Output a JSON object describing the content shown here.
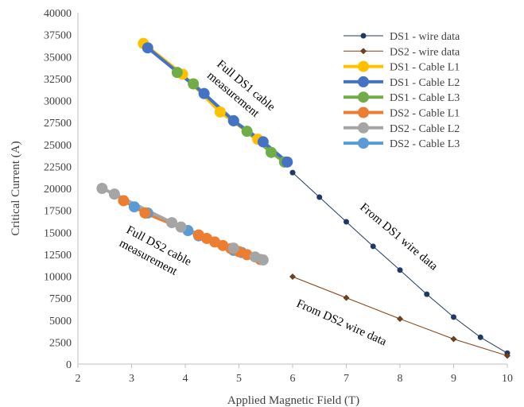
{
  "chart_data": {
    "type": "scatter",
    "title": "",
    "xlabel": "Applied Magnetic Field (T)",
    "ylabel": "Critical Current (A)",
    "xlim": [
      2,
      10
    ],
    "ylim": [
      0,
      40000
    ],
    "xticks": [
      2,
      3,
      4,
      5,
      6,
      7,
      8,
      9,
      10
    ],
    "yticks": [
      0,
      2500,
      5000,
      7500,
      10000,
      12500,
      15000,
      17500,
      20000,
      22500,
      25000,
      27500,
      30000,
      32500,
      35000,
      37500,
      40000
    ],
    "grid": false,
    "legend_position": "top-right",
    "series": [
      {
        "name": "DS1 - wire data",
        "color": "#1f3864",
        "marker": "circle",
        "line": "thin",
        "x": [
          6,
          6.5,
          7,
          7.5,
          8,
          8.5,
          9,
          9.5,
          10
        ],
        "y": [
          21800,
          19000,
          16200,
          13400,
          10700,
          7950,
          5350,
          3050,
          1250
        ]
      },
      {
        "name": "DS2 - wire data",
        "color": "#843c0c",
        "marker": "diamond",
        "line": "thin",
        "x": [
          6,
          7,
          8,
          9,
          10
        ],
        "y": [
          9950,
          7550,
          5150,
          2850,
          950
        ]
      },
      {
        "name": "DS1 - Cable L1",
        "color": "#ffc000",
        "marker": "circle",
        "line": "thick",
        "x": [
          3.22,
          3.95,
          4.65,
          5.35,
          5.85
        ],
        "y": [
          36500,
          33000,
          28700,
          25600,
          23000
        ]
      },
      {
        "name": "DS1 - Cable L2",
        "color": "#4472c4",
        "marker": "circle",
        "line": "thick",
        "x": [
          3.3,
          4.35,
          4.9,
          5.45,
          5.9
        ],
        "y": [
          36000,
          30800,
          27700,
          25300,
          23000
        ]
      },
      {
        "name": "DS1 - Cable L3",
        "color": "#70ad47",
        "marker": "circle",
        "line": "thick",
        "x": [
          3.85,
          4.15,
          4.9,
          5.15,
          5.6,
          5.85
        ],
        "y": [
          33200,
          31900,
          27700,
          26500,
          24100,
          23000
        ]
      },
      {
        "name": "DS2 - Cable L1",
        "color": "#ed7d31",
        "marker": "circle",
        "line": "thick",
        "x": [
          2.85,
          3.25,
          4.25,
          4.4,
          4.55,
          4.7,
          4.85,
          5.0,
          5.15,
          5.4
        ],
        "y": [
          18600,
          17200,
          14700,
          14300,
          13900,
          13500,
          13150,
          12800,
          12450,
          11900
        ]
      },
      {
        "name": "DS2 - Cable L2",
        "color": "#a5a5a5",
        "marker": "circle",
        "line": "thick",
        "x": [
          2.45,
          2.68,
          3.75,
          3.92,
          4.9,
          5.3,
          5.45
        ],
        "y": [
          20000,
          19350,
          16100,
          15600,
          13200,
          12200,
          11850
        ]
      },
      {
        "name": "DS2 - Cable L3",
        "color": "#5b9bd5",
        "marker": "circle",
        "line": "thick",
        "x": [
          3.05,
          3.3,
          4.05,
          4.25,
          4.9,
          5.05
        ],
        "y": [
          17900,
          17200,
          15200,
          14600,
          12950,
          12700
        ]
      }
    ],
    "annotations": [
      {
        "text": "Full DS1 cable measurement"
      },
      {
        "text": "From DS1 wire data"
      },
      {
        "text": "Full DS2 cable measurement"
      },
      {
        "text": "From DS2 wire data"
      }
    ]
  }
}
